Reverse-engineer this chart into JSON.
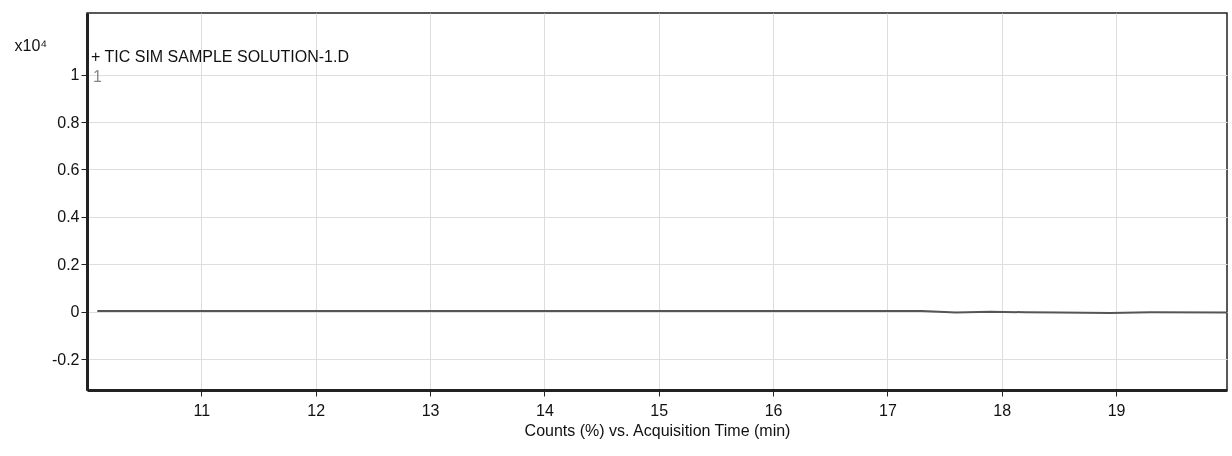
{
  "chart_data": {
    "type": "line",
    "title": "+ TIC SIM SAMPLE SOLUTION-1.D",
    "xlabel": "Counts (%) vs. Acquisition Time (min)",
    "ylabel": "x10⁴",
    "x": [
      10.09,
      17.3,
      17.6,
      17.9,
      18.2,
      18.5,
      18.95,
      19.3,
      19.97
    ],
    "series": [
      {
        "color": "#555555",
        "values": [
          0.003,
          0.003,
          -0.003,
          0.0,
          -0.002,
          -0.003,
          -0.005,
          -0.002,
          -0.003
        ]
      }
    ],
    "xlim": [
      10,
      19.97
    ],
    "xticks": [
      11,
      12,
      13,
      14,
      15,
      16,
      17,
      18,
      19
    ],
    "ylim": [
      -0.33,
      1.26
    ],
    "yticks": [
      -0.2,
      0,
      0.2,
      0.4,
      0.6,
      0.8,
      1
    ],
    "annotations": [
      "1"
    ],
    "grid": true,
    "marker": "none",
    "line_style": "solid"
  }
}
